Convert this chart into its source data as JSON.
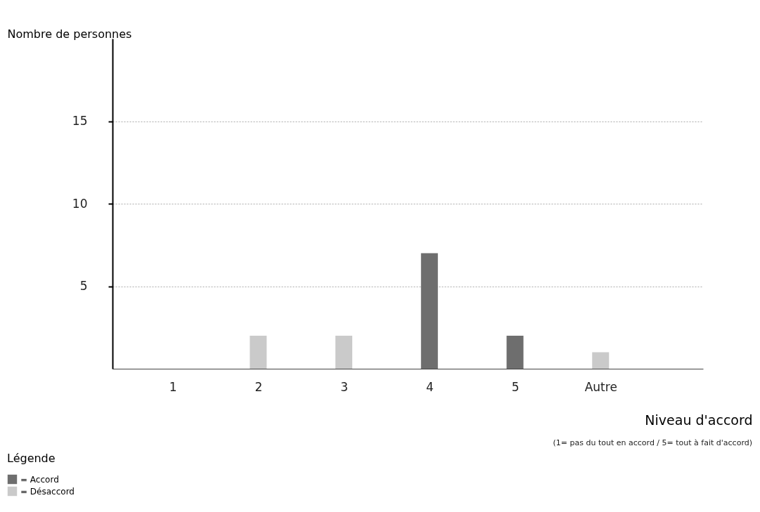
{
  "chart_data": {
    "type": "bar",
    "xlabel": "Niveau d'accord",
    "ylabel": "Nombre de personnes",
    "legend_title": "Légende",
    "categories": [
      "1",
      "2",
      "3",
      "4",
      "5",
      "Autre"
    ],
    "series": [
      {
        "name": "= Accord",
        "color": "#6e6e6e",
        "values": [
          null,
          null,
          null,
          7,
          2,
          null
        ]
      },
      {
        "name": "= Désaccord",
        "color": "#cacaca",
        "values": [
          null,
          2,
          2,
          null,
          null,
          1
        ]
      }
    ],
    "ylim": [
      0,
      20
    ],
    "yticks": [
      5,
      10,
      15
    ],
    "grid": "y",
    "legend": "bottom left",
    "annotations": [
      "(1= pas du tout en accord / 5= tout à fait d'accord)"
    ]
  }
}
